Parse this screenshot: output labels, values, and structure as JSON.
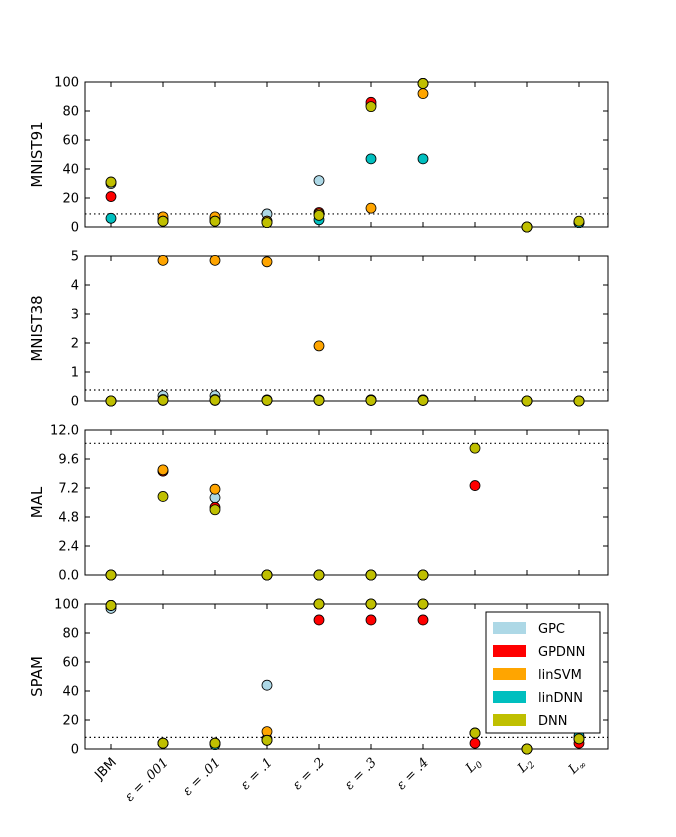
{
  "legend": [
    {
      "name": "GPC",
      "color": "#add8e6"
    },
    {
      "name": "GPDNN",
      "color": "#ff0000"
    },
    {
      "name": "linSVM",
      "color": "#ffa500"
    },
    {
      "name": "linDNN",
      "color": "#00bfbf"
    },
    {
      "name": "DNN",
      "color": "#bfbf00"
    }
  ],
  "chart_data": [
    {
      "type": "scatter",
      "ylabel": "MNIST91",
      "ylim": [
        0,
        100
      ],
      "yticks": [
        "0",
        "20",
        "40",
        "60",
        "80",
        "100"
      ],
      "yticks_values": [
        0,
        20,
        40,
        60,
        80,
        100
      ],
      "baseline": 9,
      "categories": [
        "JBM",
        "ε = .001",
        "ε = .01",
        "ε = .1",
        "ε = .2",
        "ε = .3",
        "ε = .4",
        "L0",
        "L2",
        "L∞"
      ],
      "series": [
        {
          "name": "GPC",
          "values": [
            30,
            5,
            5,
            9,
            32,
            84,
            99,
            null,
            0,
            3
          ]
        },
        {
          "name": "GPDNN",
          "values": [
            21,
            5,
            6,
            4,
            10,
            86,
            99,
            null,
            0,
            3
          ]
        },
        {
          "name": "linSVM",
          "values": [
            31,
            7,
            7,
            4,
            9,
            13,
            92,
            null,
            0,
            3
          ]
        },
        {
          "name": "linDNN",
          "values": [
            6,
            4,
            4,
            3,
            5,
            47,
            47,
            null,
            0,
            3
          ]
        },
        {
          "name": "DNN",
          "values": [
            31,
            4,
            4,
            3,
            8,
            83,
            99,
            null,
            0,
            4
          ]
        }
      ]
    },
    {
      "type": "scatter",
      "ylabel": "MNIST38",
      "ylim": [
        0,
        5
      ],
      "yticks": [
        "0",
        "1",
        "2",
        "3",
        "4",
        "5"
      ],
      "yticks_values": [
        0,
        1,
        2,
        3,
        4,
        5
      ],
      "baseline": 0.38,
      "categories": [
        "JBM",
        "ε = .001",
        "ε = .01",
        "ε = .1",
        "ε = .2",
        "ε = .3",
        "ε = .4",
        "L0",
        "L2",
        "L∞"
      ],
      "series": [
        {
          "name": "GPC",
          "values": [
            0,
            0.18,
            0.18,
            0.03,
            0.03,
            0.03,
            0.03,
            null,
            0,
            0
          ]
        },
        {
          "name": "GPDNN",
          "values": [
            0,
            0.02,
            0.02,
            0.04,
            0.04,
            0.04,
            0.04,
            null,
            0,
            0
          ]
        },
        {
          "name": "linSVM",
          "values": [
            0,
            4.85,
            4.85,
            4.8,
            1.9,
            0.04,
            0.04,
            null,
            0,
            0
          ]
        },
        {
          "name": "linDNN",
          "values": [
            0,
            0.05,
            0.05,
            0.02,
            0.02,
            0.02,
            0.02,
            null,
            0,
            0
          ]
        },
        {
          "name": "DNN",
          "values": [
            0,
            0.03,
            0.03,
            0.02,
            0.02,
            0.02,
            0.02,
            null,
            0,
            0
          ]
        }
      ]
    },
    {
      "type": "scatter",
      "ylabel": "MAL",
      "ylim": [
        0,
        12
      ],
      "yticks": [
        "0.0",
        "2.4",
        "4.8",
        "7.2",
        "9.6",
        "12.0"
      ],
      "yticks_values": [
        0,
        2.4,
        4.8,
        7.2,
        9.6,
        12
      ],
      "baseline": 10.9,
      "categories": [
        "JBM",
        "ε = .001",
        "ε = .01",
        "ε = .1",
        "ε = .2",
        "ε = .3",
        "ε = .4",
        "L0",
        "L2",
        "L∞"
      ],
      "series": [
        {
          "name": "GPC",
          "values": [
            0,
            8.6,
            6.4,
            0,
            0,
            0,
            0,
            null,
            null,
            null
          ]
        },
        {
          "name": "GPDNN",
          "values": [
            0,
            8.6,
            5.6,
            0,
            0,
            0,
            0,
            7.4,
            null,
            null
          ]
        },
        {
          "name": "linSVM",
          "values": [
            0,
            8.7,
            7.1,
            0,
            0,
            0,
            0,
            null,
            null,
            null
          ]
        },
        {
          "name": "linDNN",
          "values": [
            0,
            null,
            null,
            0,
            0,
            0,
            0,
            null,
            null,
            null
          ]
        },
        {
          "name": "DNN",
          "values": [
            0,
            6.5,
            5.4,
            0,
            0,
            0,
            0,
            10.5,
            null,
            null
          ]
        }
      ]
    },
    {
      "type": "scatter",
      "ylabel": "SPAM",
      "ylim": [
        0,
        100
      ],
      "yticks": [
        "0",
        "20",
        "40",
        "60",
        "80",
        "100"
      ],
      "yticks_values": [
        0,
        20,
        40,
        60,
        80,
        100
      ],
      "baseline": 8,
      "categories": [
        "JBM",
        "ε = .001",
        "ε = .01",
        "ε = .1",
        "ε = .2",
        "ε = .3",
        "ε = .4",
        "L0",
        "L2",
        "L∞"
      ],
      "series": [
        {
          "name": "GPC",
          "values": [
            97,
            4,
            4,
            44,
            100,
            100,
            100,
            11,
            0,
            7
          ]
        },
        {
          "name": "GPDNN",
          "values": [
            99,
            4,
            4,
            7,
            89,
            89,
            89,
            4,
            0,
            4
          ]
        },
        {
          "name": "linSVM",
          "values": [
            99,
            4,
            4,
            12,
            100,
            100,
            100,
            11,
            0,
            7
          ]
        },
        {
          "name": "linDNN",
          "values": [
            99,
            4,
            3,
            6,
            100,
            100,
            100,
            11,
            0,
            9
          ]
        },
        {
          "name": "DNN",
          "values": [
            99,
            4,
            4,
            6,
            100,
            100,
            100,
            11,
            0,
            7
          ]
        }
      ]
    }
  ],
  "xtick_labels": [
    {
      "text": "JBM",
      "math": false
    },
    {
      "text": "ε = .001",
      "math": true
    },
    {
      "text": "ε = .01",
      "math": true
    },
    {
      "text": "ε = .1",
      "math": true
    },
    {
      "text": "ε = .2",
      "math": true
    },
    {
      "text": "ε = .3",
      "math": true
    },
    {
      "text": "ε = .4",
      "math": true
    },
    {
      "text": "L0",
      "base": "L",
      "sub": "0",
      "math": true
    },
    {
      "text": "L2",
      "base": "L",
      "sub": "2",
      "math": true
    },
    {
      "text": "L∞",
      "base": "L",
      "sub": "∞",
      "math": true
    }
  ]
}
